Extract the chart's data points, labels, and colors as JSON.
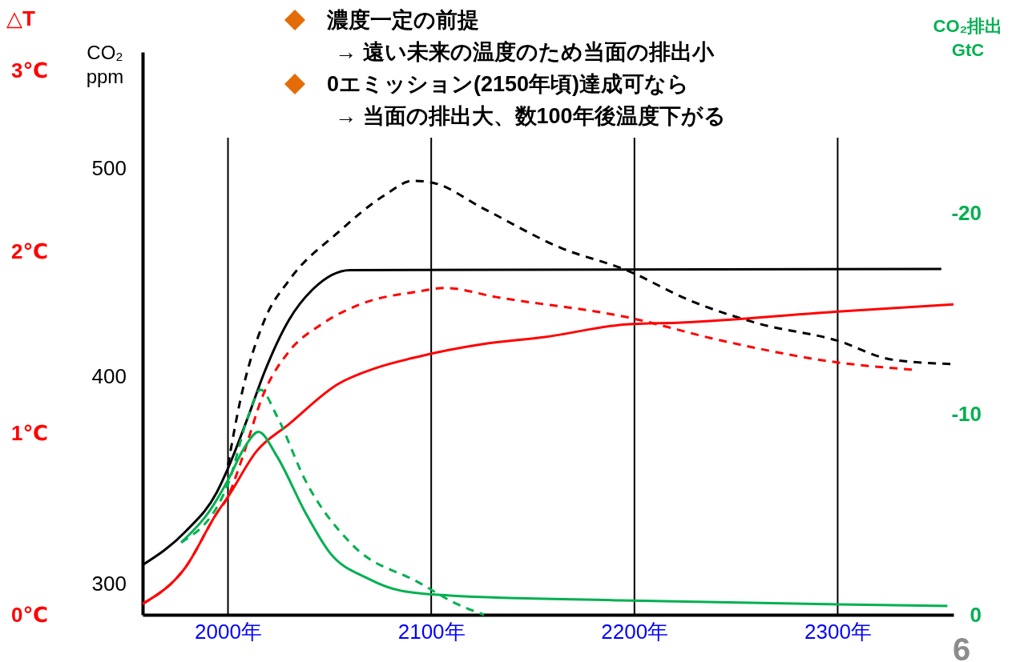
{
  "chart_data": {
    "type": "line",
    "annotations": [
      "濃度一定の前提",
      "→  遠い未来の温度のため当面の排出小",
      "0エミッション(2150年頃)達成可なら",
      "→  当面の排出大、数100年後温度下がる",
      "6"
    ],
    "ylabel": "CO₂ ppm",
    "y2label": "CO₂排出 GtC",
    "y3label": "△T",
    "xlim": [
      1958,
      2357
    ],
    "xticks": [
      {
        "value": 2000,
        "label": "2000年"
      },
      {
        "value": 2100,
        "label": "2100年"
      },
      {
        "value": 2200,
        "label": "2200年"
      },
      {
        "value": 2300,
        "label": "2300年"
      }
    ],
    "ylim": [
      285,
      556
    ],
    "yticks": [
      300,
      400,
      500
    ],
    "y2lim": [
      0,
      -28
    ],
    "y2ticks": [
      0,
      -10,
      -20
    ],
    "y3lim": [
      0,
      3.1
    ],
    "y3ticks": [
      {
        "value": 0,
        "label": "0℃"
      },
      {
        "value": 1,
        "label": "1℃"
      },
      {
        "value": 2,
        "label": "2℃"
      },
      {
        "value": 3,
        "label": "3℃"
      }
    ],
    "grid": "x",
    "marker": "none",
    "series": [
      {
        "color": "#000000",
        "line_style": "solid",
        "x": [
          1958,
          1979,
          1994.5,
          2000,
          2010,
          2018,
          2030,
          2042,
          2060,
          2351
        ],
        "values": [
          309,
          325,
          344,
          355.5,
          380.6,
          402,
          427,
          442,
          451,
          451.5
        ]
      },
      {
        "color": "#000000",
        "line_style": "dashed",
        "x": [
          2000,
          2006,
          2018,
          2030,
          2054,
          2077,
          2091,
          2101,
          2125,
          2164,
          2196,
          2227,
          2262,
          2300,
          2326,
          2357
        ],
        "values": [
          357,
          388,
          427,
          446,
          469,
          487,
          494,
          493,
          481,
          461.6,
          451,
          436.5,
          425,
          417,
          408,
          405.7
        ]
      },
      {
        "color": "#ff0000",
        "line_style": "solid",
        "axis": "y3",
        "x": [
          1958,
          1979,
          1994.5,
          2000,
          2014,
          2030,
          2054,
          2073,
          2093,
          2125,
          2156,
          2196,
          2223,
          2300,
          2357
        ],
        "values": [
          0.06,
          0.26,
          0.56,
          0.65,
          0.9,
          1.05,
          1.27,
          1.36,
          1.42,
          1.49,
          1.53,
          1.6,
          1.61,
          1.67,
          1.71
        ]
      },
      {
        "color": "#ff0000",
        "line_style": "dashed",
        "axis": "y3",
        "x": [
          1958,
          1979,
          1994.5,
          2000,
          2006,
          2018,
          2030,
          2046,
          2065,
          2093,
          2107,
          2132,
          2196,
          2243,
          2300,
          2337
        ],
        "values": [
          0.06,
          0.26,
          0.56,
          0.65,
          0.83,
          1.23,
          1.45,
          1.6,
          1.71,
          1.78,
          1.8,
          1.75,
          1.64,
          1.51,
          1.39,
          1.35
        ]
      },
      {
        "color": "#00b050",
        "line_style": "solid",
        "axis": "y2",
        "x": [
          1977,
          1990.5,
          2000,
          2008,
          2015,
          2024,
          2038,
          2050,
          2069,
          2085,
          2109,
          2193,
          2300,
          2354
        ],
        "values": [
          -3.6,
          -5.1,
          -6.7,
          -8.3,
          -9.1,
          -7.9,
          -5.1,
          -3.1,
          -1.8,
          -1.2,
          -0.96,
          -0.72,
          -0.52,
          -0.44
        ]
      },
      {
        "color": "#00b050",
        "line_style": "dashed",
        "axis": "y2",
        "x": [
          1977,
          2000,
          2010,
          2016,
          2024,
          2038,
          2061,
          2094,
          2113,
          2126
        ],
        "values": [
          -3.6,
          -6.5,
          -9.9,
          -11.2,
          -9.9,
          -6.7,
          -3.5,
          -1.6,
          -0.52,
          0
        ]
      }
    ]
  }
}
